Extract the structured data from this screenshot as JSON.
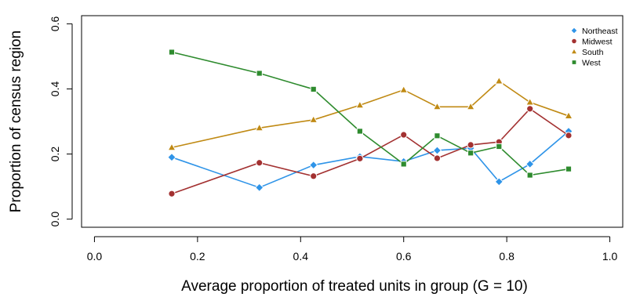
{
  "chart_data": {
    "type": "line",
    "title": "",
    "xlabel": "Average proportion of treated units in group (G = 10)",
    "ylabel": "Proportion of census region",
    "xlim": [
      -0.025,
      1.025
    ],
    "ylim": [
      -0.025,
      0.625
    ],
    "x_ticks": [
      "0.0",
      "0.2",
      "0.4",
      "0.6",
      "0.8",
      "1.0"
    ],
    "y_ticks": [
      "0.0",
      "0.2",
      "0.4",
      "0.6"
    ],
    "grid": false,
    "legend_position": "top-right",
    "series": [
      {
        "name": "Northeast",
        "color": "#2f94e8",
        "marker": "diamond",
        "points": [
          [
            0.15,
            0.19
          ],
          [
            0.32,
            0.097
          ],
          [
            0.425,
            0.166
          ],
          [
            0.515,
            0.192
          ],
          [
            0.6,
            0.177
          ],
          [
            0.665,
            0.211
          ],
          [
            0.73,
            0.218
          ],
          [
            0.785,
            0.115
          ],
          [
            0.845,
            0.169
          ],
          [
            0.92,
            0.27
          ]
        ]
      },
      {
        "name": "Midwest",
        "color": "#a33131",
        "marker": "circle",
        "points": [
          [
            0.15,
            0.078
          ],
          [
            0.32,
            0.173
          ],
          [
            0.425,
            0.132
          ],
          [
            0.515,
            0.186
          ],
          [
            0.6,
            0.259
          ],
          [
            0.665,
            0.187
          ],
          [
            0.73,
            0.228
          ],
          [
            0.785,
            0.237
          ],
          [
            0.845,
            0.339
          ],
          [
            0.92,
            0.257
          ]
        ]
      },
      {
        "name": "South",
        "color": "#c08a14",
        "marker": "triangle",
        "points": [
          [
            0.15,
            0.22
          ],
          [
            0.32,
            0.28
          ],
          [
            0.425,
            0.305
          ],
          [
            0.515,
            0.35
          ],
          [
            0.6,
            0.397
          ],
          [
            0.665,
            0.345
          ],
          [
            0.73,
            0.345
          ],
          [
            0.785,
            0.424
          ],
          [
            0.845,
            0.359
          ],
          [
            0.92,
            0.317
          ]
        ]
      },
      {
        "name": "West",
        "color": "#2e8b2e",
        "marker": "square",
        "points": [
          [
            0.15,
            0.513
          ],
          [
            0.32,
            0.448
          ],
          [
            0.425,
            0.399
          ],
          [
            0.515,
            0.27
          ],
          [
            0.6,
            0.169
          ],
          [
            0.665,
            0.256
          ],
          [
            0.73,
            0.203
          ],
          [
            0.785,
            0.223
          ],
          [
            0.845,
            0.135
          ],
          [
            0.92,
            0.154
          ]
        ]
      }
    ]
  }
}
